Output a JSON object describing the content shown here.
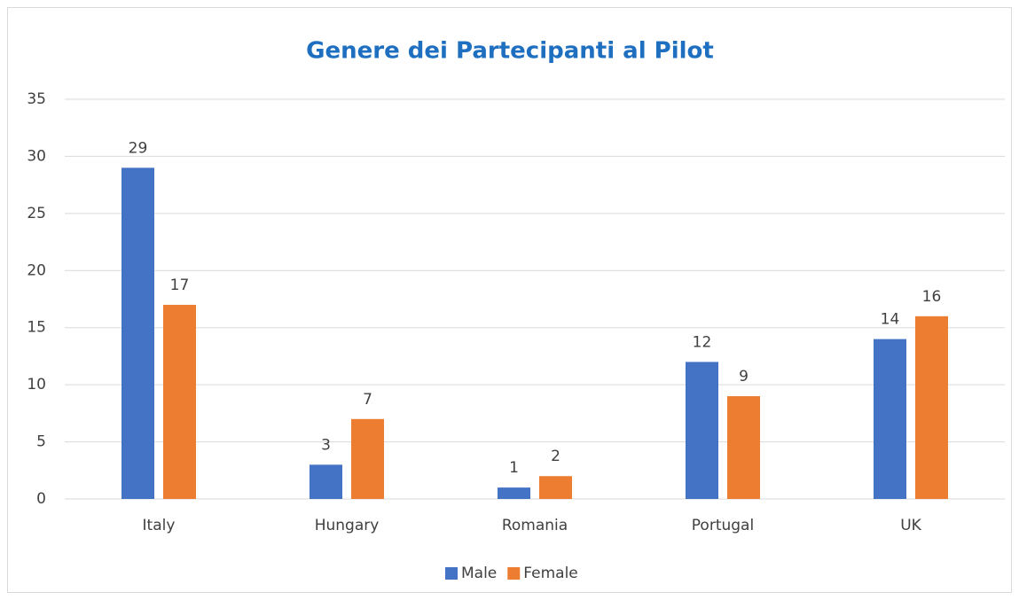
{
  "chart_data": {
    "type": "bar",
    "title": "Genere dei Partecipanti al Pilot",
    "categories": [
      "Italy",
      "Hungary",
      "Romania",
      "Portugal",
      "UK"
    ],
    "series": [
      {
        "name": "Male",
        "color": "#4472c4",
        "values": [
          29,
          3,
          1,
          12,
          14
        ]
      },
      {
        "name": "Female",
        "color": "#ed7d31",
        "values": [
          17,
          7,
          2,
          9,
          16
        ]
      }
    ],
    "ylim": [
      0,
      35
    ],
    "yticks": [
      0,
      5,
      10,
      15,
      20,
      25,
      30,
      35
    ],
    "grid": true,
    "legend": "bottom"
  }
}
